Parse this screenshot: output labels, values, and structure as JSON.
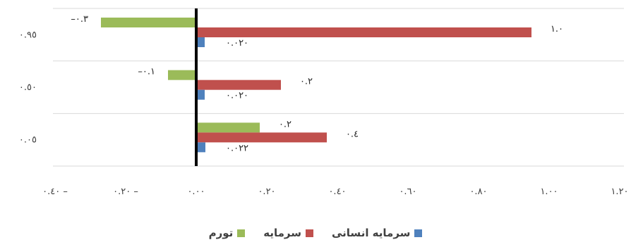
{
  "chart_data": {
    "type": "bar",
    "orientation": "horizontal",
    "categories": [
      "٠.٠٥",
      "٠.٥٠",
      "٠.٩٥"
    ],
    "xlim": [
      -0.4,
      1.2
    ],
    "xticks": [
      -0.4,
      -0.2,
      0,
      0.2,
      0.4,
      0.6,
      0.8,
      1.0,
      1.2
    ],
    "xtick_labels": [
      "٠.٤٠ –",
      "٠.٢٠ –",
      "٠.٠٠",
      "٠.٢٠",
      "٠.٤٠",
      "٠.٦٠",
      "٠.٨٠",
      "١.٠٠",
      "١.٢٠"
    ],
    "grid": true,
    "legend_position": "bottom",
    "series": [
      {
        "name": "تورم",
        "color": "#9BBB59",
        "values": [
          0.18,
          -0.08,
          -0.27
        ],
        "labels": [
          "٠.٢",
          "–٠.١",
          "–٠.٣"
        ]
      },
      {
        "name": "سرمایه",
        "color": "#C0504D",
        "values": [
          0.37,
          0.24,
          0.95
        ],
        "labels": [
          "٠.٤",
          "٠.٢",
          "١.٠"
        ]
      },
      {
        "name": "سرمایه انسانی",
        "color": "#4F81BD",
        "values": [
          0.022,
          0.02,
          0.02
        ],
        "labels": [
          "٠.٠٢٢",
          "٠.٠٢٠",
          "٠.٠٢٠"
        ]
      }
    ]
  }
}
